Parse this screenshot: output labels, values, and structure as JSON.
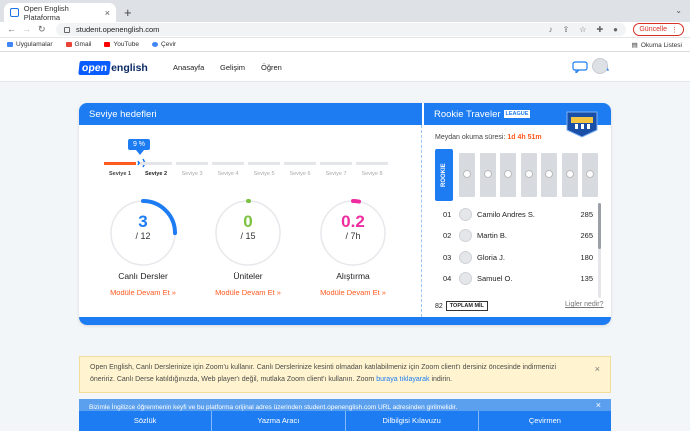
{
  "browser": {
    "tab_title": "Open English Plataforma",
    "tab_close": "×",
    "new_tab": "+",
    "window_controls": "⌄",
    "url": "student.openenglish.com",
    "update_button": "Güncelle",
    "bookmarks": [
      {
        "label": "Uygulamalar",
        "color": "#4285f4"
      },
      {
        "label": "Gmail",
        "color": "#ea4335"
      },
      {
        "label": "YouTube",
        "color": "#ff0000"
      },
      {
        "label": "Çevir",
        "color": "#4285f4"
      }
    ],
    "reading_list": "Okuma Listesi"
  },
  "site": {
    "logo_part1": "open",
    "logo_part2": "english",
    "nav": [
      "Anasayfa",
      "Gelişim",
      "Öğren"
    ]
  },
  "goals": {
    "title": "Seviye hedefleri",
    "progress_badge": "9 %",
    "levels": [
      "Seviye 1",
      "Seviye 2",
      "Seviye 3",
      "Seviye 4",
      "Seviye 5",
      "Seviye 6",
      "Seviye 7",
      "Seviye 8"
    ],
    "current_level": "Seviye 2",
    "rings": [
      {
        "value": "3",
        "total": "/ 12",
        "label": "Canlı Dersler",
        "link": "Modüle Devam Et »",
        "color": "#1d7cf2",
        "fraction": 0.25
      },
      {
        "value": "0",
        "total": "/ 15",
        "label": "Üniteler",
        "link": "Modüle Devam Et »",
        "color": "#7cc242",
        "fraction": 0.0
      },
      {
        "value": "0.2",
        "total": "/ 7h",
        "label": "Alıştırma",
        "link": "Modüle Devam Et »",
        "color": "#ee2ca0",
        "fraction": 0.03
      }
    ]
  },
  "league": {
    "title": "Rookie Traveler",
    "badge": "LEAGUE",
    "time_label": "Meydan okuma süresi:",
    "time_value": "1d 4h 51m",
    "rookie_label": "ROOKIE",
    "leaderboard": [
      {
        "rank": "01",
        "name": "Camilo Andres S.",
        "score": "285"
      },
      {
        "rank": "02",
        "name": "Martin B.",
        "score": "265"
      },
      {
        "rank": "03",
        "name": "Gloria J.",
        "score": "180"
      },
      {
        "rank": "04",
        "name": "Samuel O.",
        "score": "135"
      }
    ],
    "total_value": "82",
    "total_label": "TOPLAM MİL",
    "rules_link": "Ligler nedir?"
  },
  "notice": {
    "text": "Open English, Canlı Derslerinize için Zoom'u kullanır. Canlı Derslerinize kesinti olmadan katılabilmeniz için Zoom client'ı dersiniz öncesinde indirmenizi öneririz. Canlı Derse katıldığınızda, Web player'ı değil, mutlaka Zoom client'ı kullanın. Zoom",
    "link": "buraya tıklayarak",
    "suffix": "indirin.",
    "close": "×"
  },
  "notice2": {
    "text": "Bizimle İngilizce öğrenmenin keyfi ve bu platforma orijinal adres üzerinden student.openenglish.com URL adresinden girilmelidir.",
    "close": "×"
  },
  "bottom_nav": [
    "Sözlük",
    "Yazma Aracı",
    "Dilbilgisi Kılavuzu",
    "Çevirmen"
  ]
}
